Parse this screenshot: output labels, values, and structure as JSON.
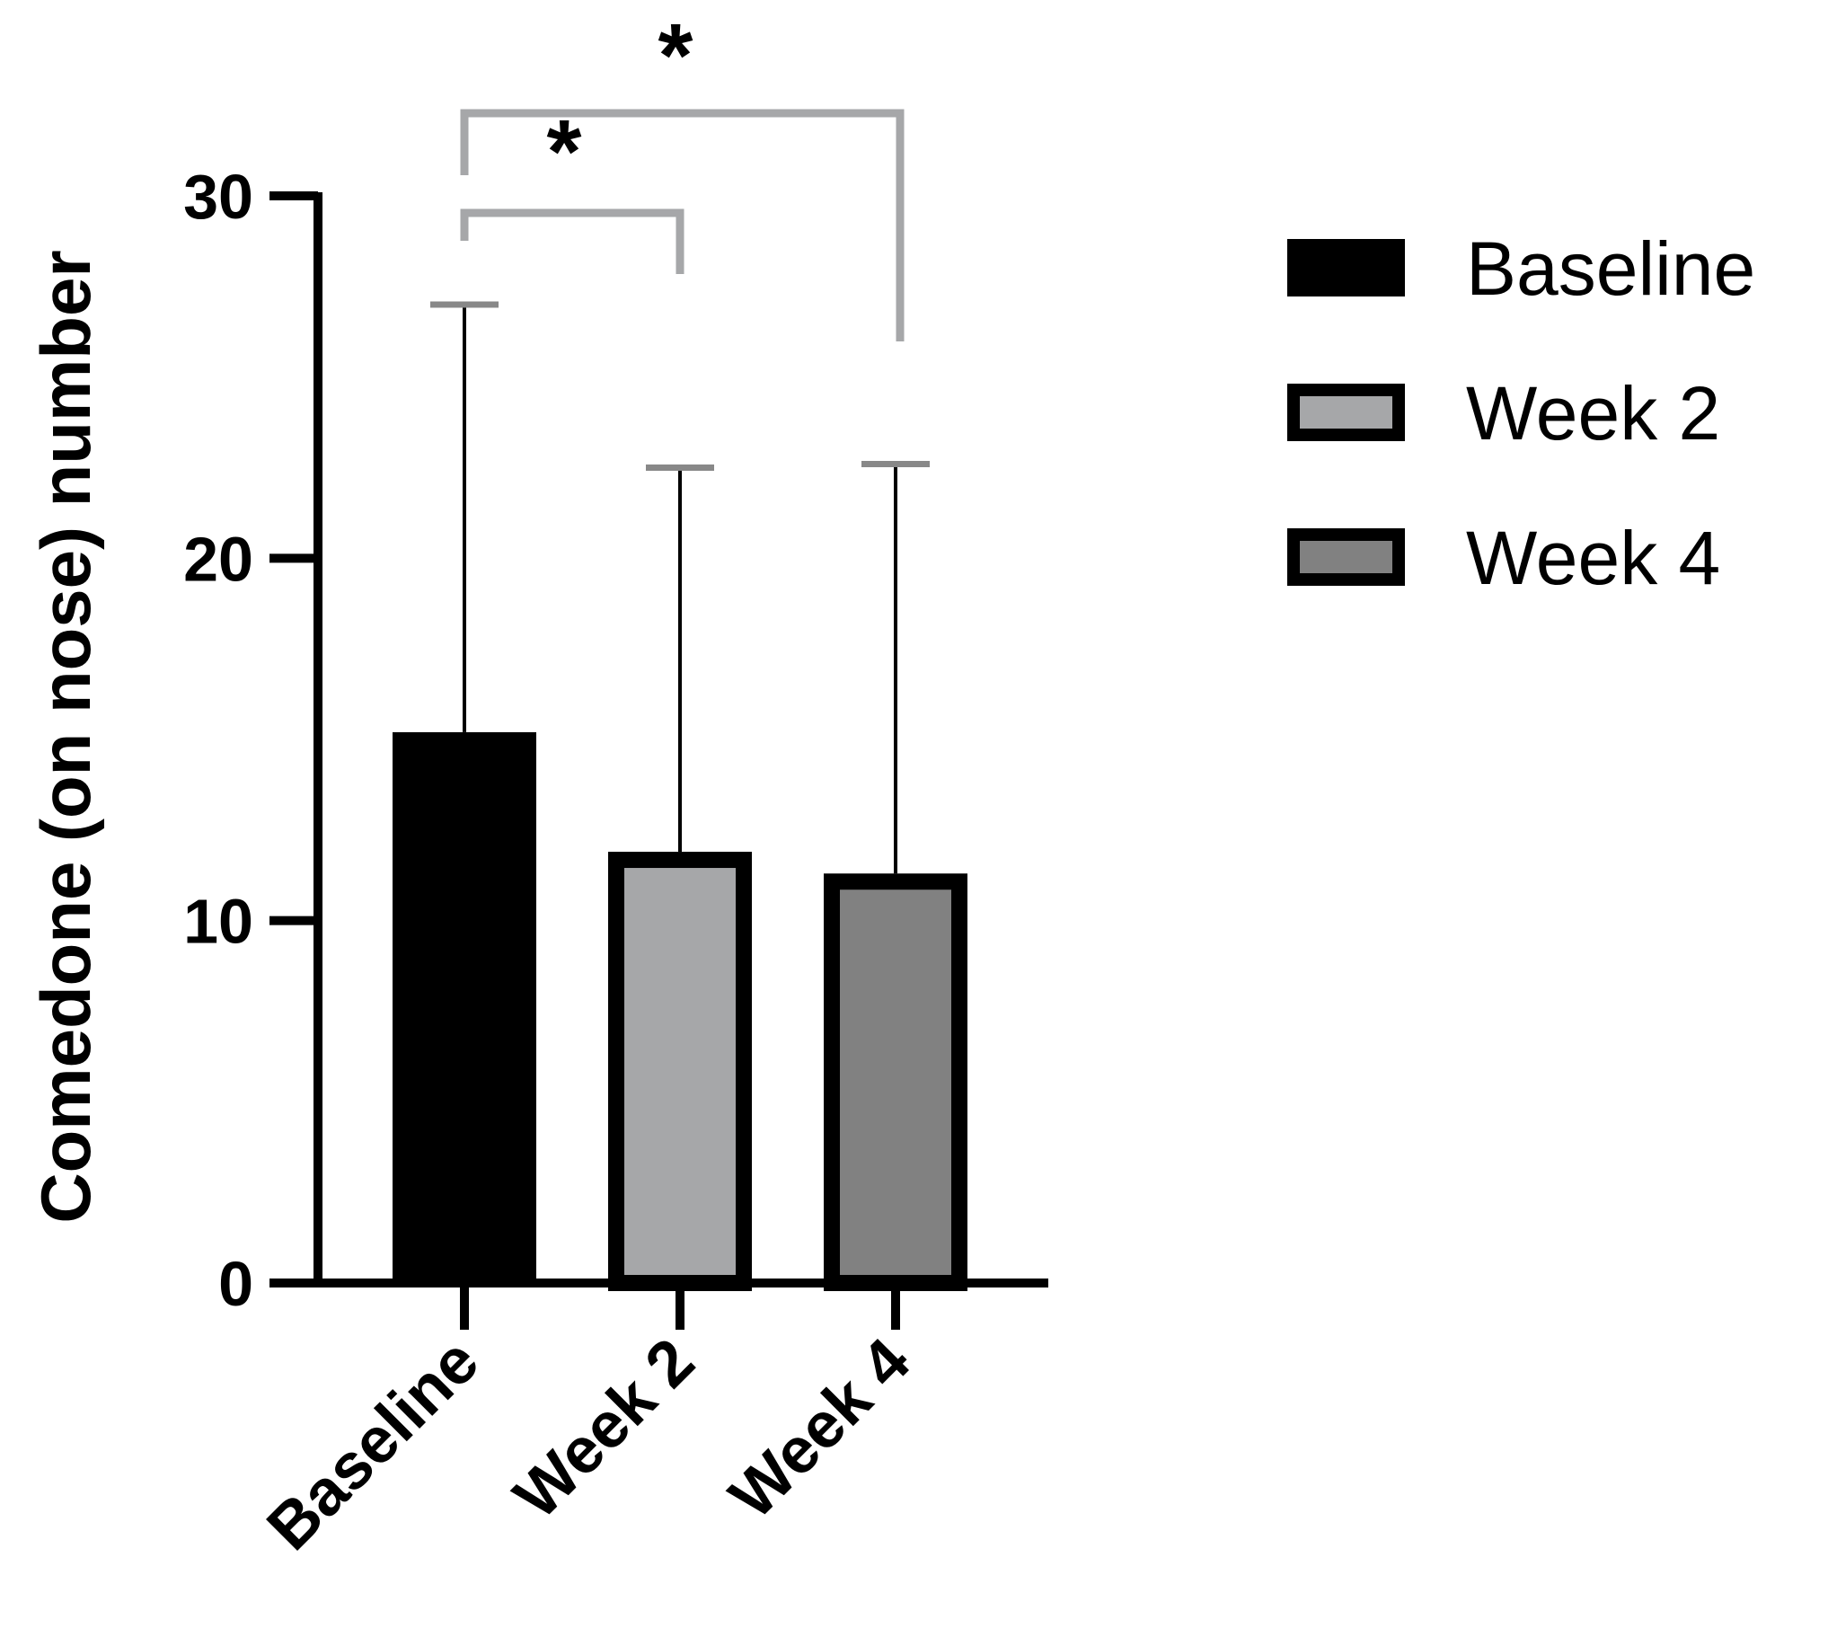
{
  "chart_data": {
    "type": "bar",
    "title": "",
    "xlabel": "",
    "ylabel": "Comedone (on nose) number",
    "ylim": [
      0,
      30
    ],
    "yticks": [
      0,
      10,
      20,
      30
    ],
    "categories": [
      "Baseline",
      "Week 2",
      "Week 4"
    ],
    "values": [
      15.2,
      11.9,
      11.3
    ],
    "error_upper": [
      27.0,
      22.5,
      22.6
    ],
    "colors": [
      "#000000",
      "#a6a7a9",
      "#818181"
    ],
    "legend": {
      "position": "right",
      "entries": [
        "Baseline",
        "Week 2",
        "Week 4"
      ]
    },
    "annotations": [
      {
        "from": "Baseline",
        "to": "Week 2",
        "label": "*"
      },
      {
        "from": "Baseline",
        "to": "Week 4",
        "label": "*"
      }
    ]
  }
}
